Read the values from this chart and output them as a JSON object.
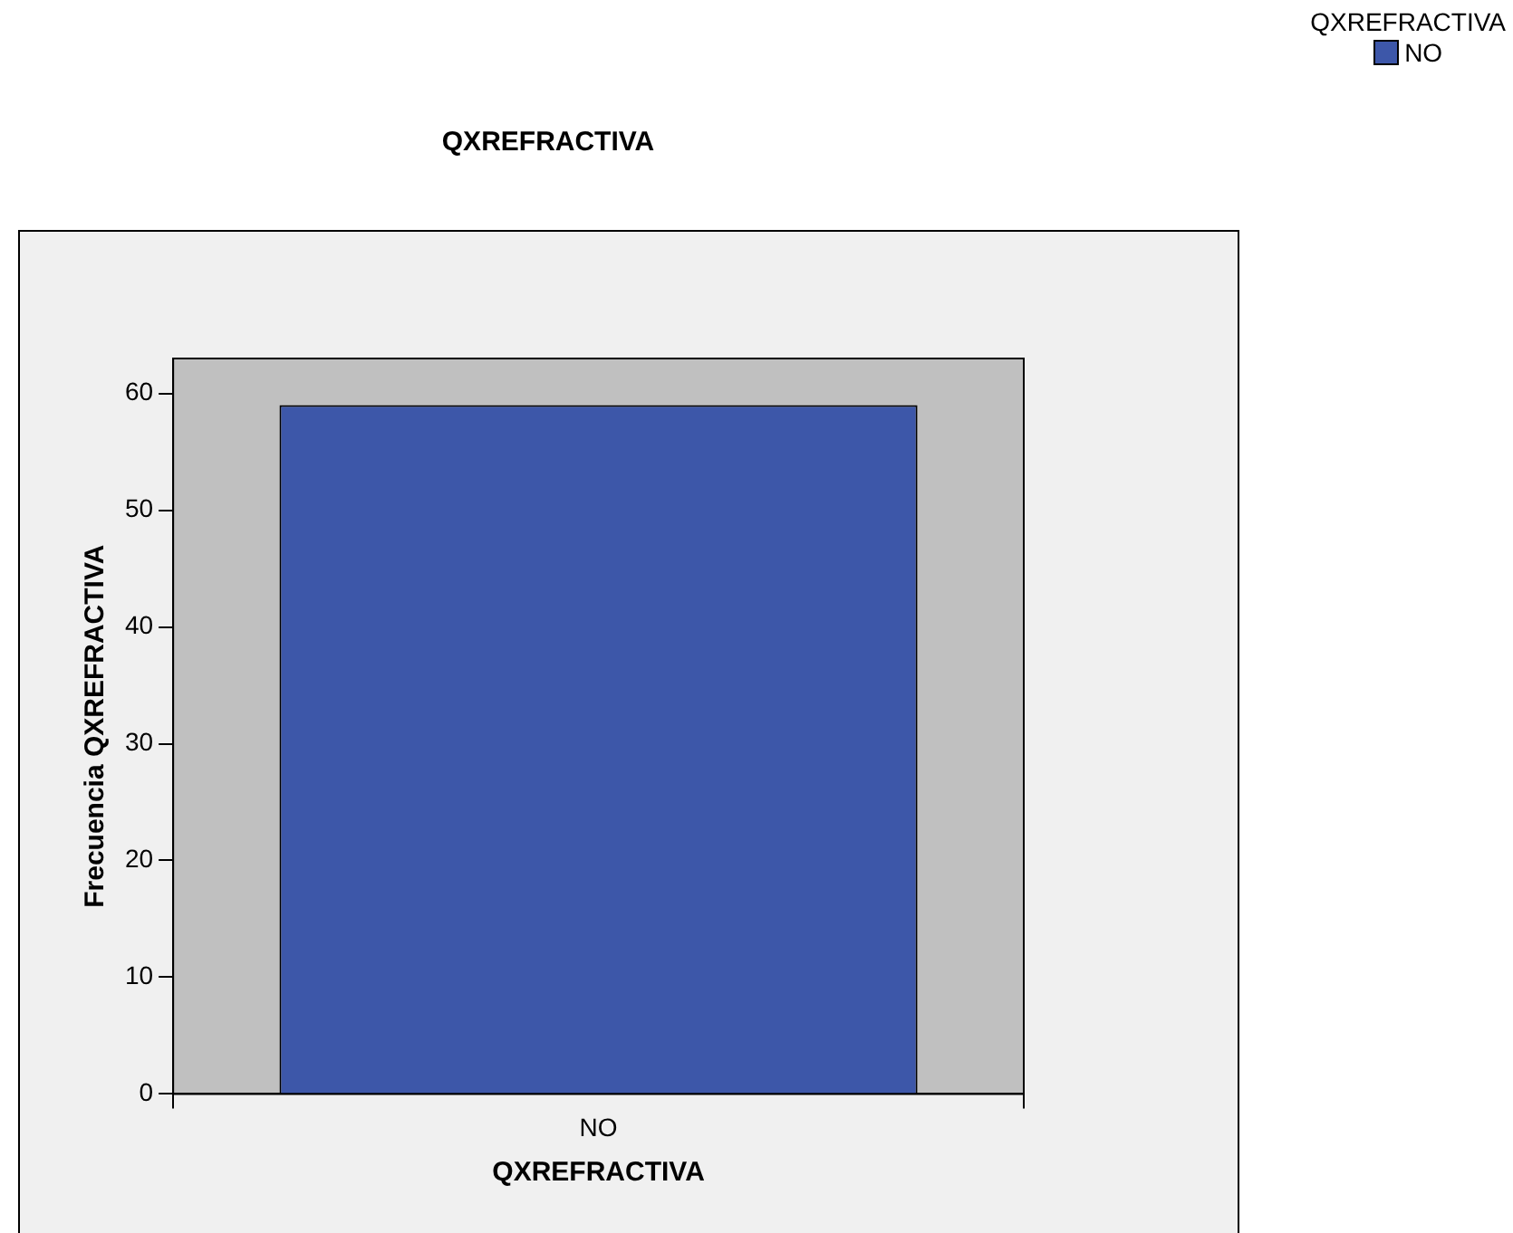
{
  "chart_data": {
    "type": "bar",
    "title": "QXREFRACTIVA",
    "xlabel": "QXREFRACTIVA",
    "ylabel": "Frecuencia QXREFRACTIVA",
    "legend_title": "QXREFRACTIVA",
    "categories": [
      "NO"
    ],
    "series": [
      {
        "name": "NO",
        "color": "#3d57a9",
        "values": [
          59
        ]
      }
    ],
    "ylim": [
      0,
      63
    ],
    "yticks": [
      0,
      10,
      20,
      30,
      40,
      50,
      60
    ],
    "grid": false,
    "legend": "top right"
  }
}
